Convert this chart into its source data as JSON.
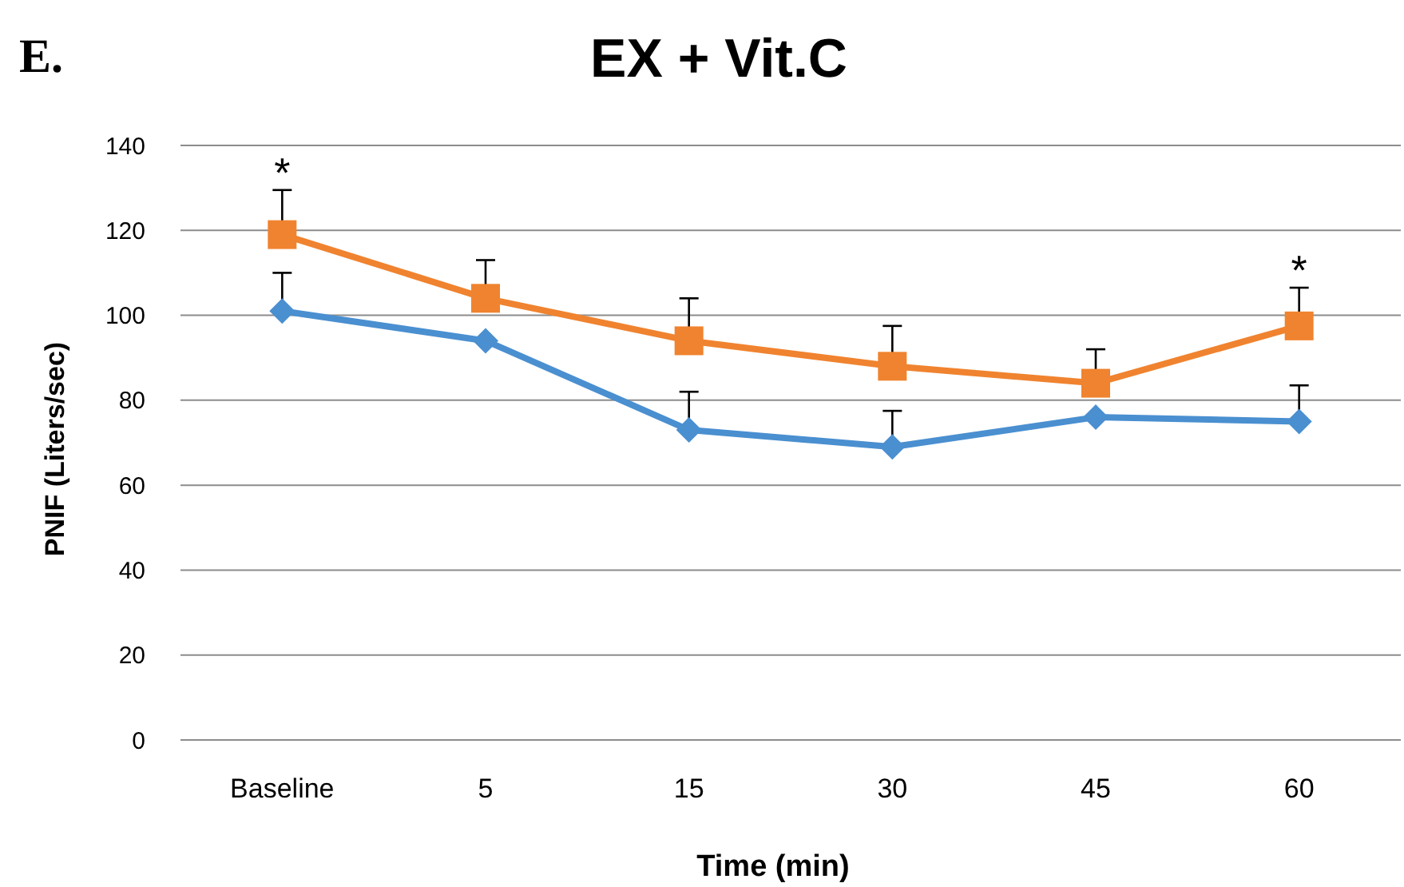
{
  "chart_data": {
    "type": "line",
    "title": "EX + Vit.C",
    "xlabel": "Time (min)",
    "ylabel": "PNIF (Liters/sec)",
    "categories": [
      "Baseline",
      "5",
      "15",
      "30",
      "45",
      "60"
    ],
    "series": [
      {
        "color": "#4a8fd0",
        "marker": "diamond",
        "values": [
          101,
          94,
          73,
          69,
          76,
          75
        ],
        "errors": [
          [
            101,
            110
          ],
          null,
          [
            73,
            82
          ],
          [
            69,
            77.5
          ],
          null,
          [
            75,
            83.5
          ]
        ]
      },
      {
        "color": "#f0832f",
        "marker": "square",
        "values": [
          119,
          104,
          94,
          88,
          84,
          97.5
        ],
        "errors": [
          [
            119,
            129.5
          ],
          [
            104,
            113
          ],
          [
            94,
            104
          ],
          [
            88,
            97.5
          ],
          [
            84,
            92
          ],
          [
            97.5,
            106.5
          ]
        ]
      }
    ],
    "ylim": [
      0,
      140
    ],
    "yticks": [
      0,
      20,
      40,
      60,
      80,
      100,
      120,
      140
    ],
    "grid": "y",
    "annotations": [
      "E.",
      "*",
      "*"
    ]
  }
}
